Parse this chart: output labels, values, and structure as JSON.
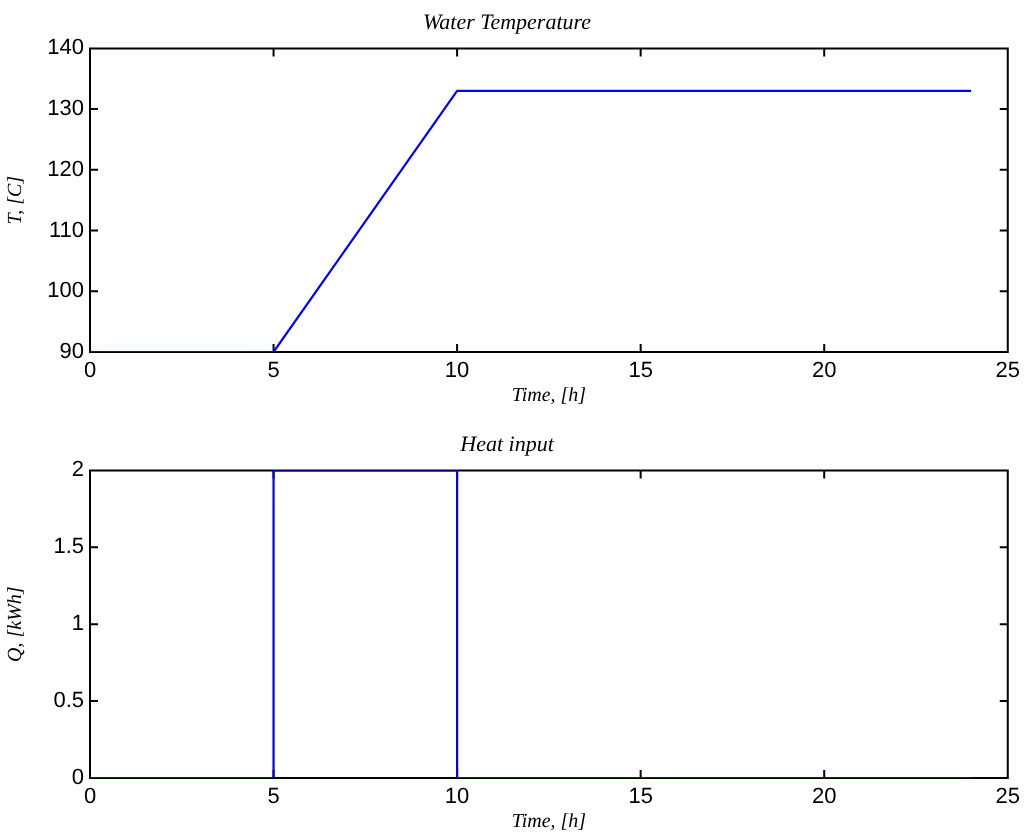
{
  "chart_data": [
    {
      "type": "line",
      "title": "Water Temperature",
      "xlabel": "Time, [h]",
      "ylabel": "T, [C]",
      "x": [
        0,
        5,
        10,
        24
      ],
      "values": [
        90,
        90,
        133,
        133
      ],
      "color": "#0000ff",
      "xlim": [
        0,
        25
      ],
      "xticks": [
        0,
        5,
        10,
        15,
        20,
        25
      ],
      "ylim": [
        90,
        140
      ],
      "yticks": [
        90,
        100,
        110,
        120,
        130,
        140
      ],
      "grid": false,
      "marker": "none"
    },
    {
      "type": "line",
      "title": "Heat input",
      "xlabel": "Time, [h]",
      "ylabel": "Q, [kWh]",
      "x": [
        0,
        5,
        5,
        10,
        10,
        24
      ],
      "values": [
        0,
        0,
        2,
        2,
        0,
        0
      ],
      "color": "#0000ff",
      "xlim": [
        0,
        25
      ],
      "xticks": [
        0,
        5,
        10,
        15,
        20,
        25
      ],
      "ylim": [
        0,
        2
      ],
      "yticks": [
        0,
        0.5,
        1,
        1.5,
        2
      ],
      "grid": false,
      "marker": "none"
    }
  ]
}
